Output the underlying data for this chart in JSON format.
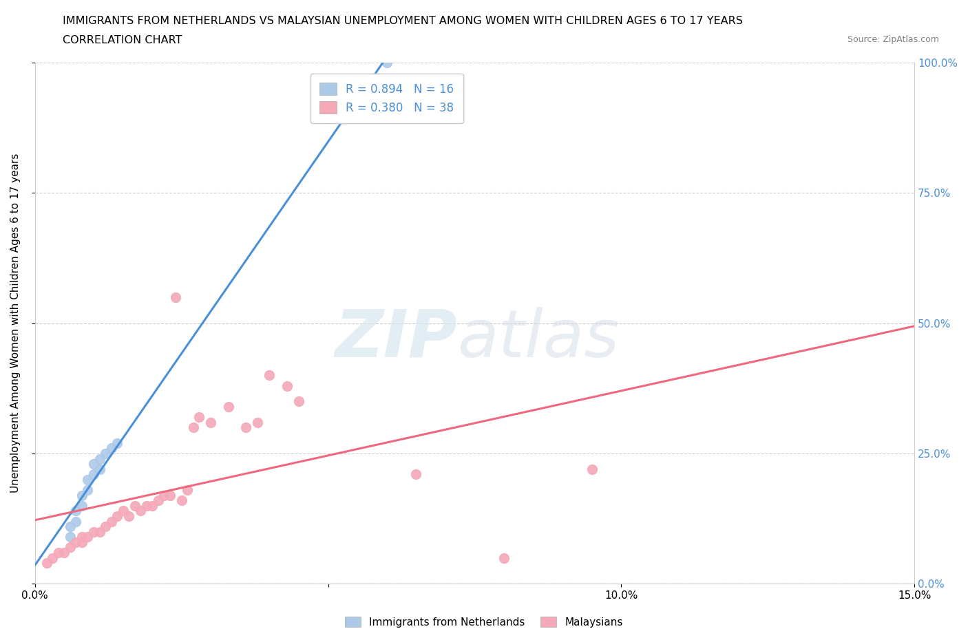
{
  "title": "IMMIGRANTS FROM NETHERLANDS VS MALAYSIAN UNEMPLOYMENT AMONG WOMEN WITH CHILDREN AGES 6 TO 17 YEARS",
  "subtitle": "CORRELATION CHART",
  "source": "Source: ZipAtlas.com",
  "ylabel": "Unemployment Among Women with Children Ages 6 to 17 years",
  "legend_labels": [
    "Immigrants from Netherlands",
    "Malaysians"
  ],
  "R_netherlands": 0.894,
  "N_netherlands": 16,
  "R_malaysians": 0.38,
  "N_malaysians": 38,
  "color_netherlands": "#adc9e8",
  "color_malaysians": "#f4a8b8",
  "trendline_netherlands": "#4a90d9",
  "trendline_malaysians": "#f06880",
  "right_axis_color": "#4a90d9",
  "background_color": "#ffffff",
  "xlim": [
    0.0,
    0.15
  ],
  "ylim": [
    0.0,
    1.0
  ],
  "yticks": [
    0.0,
    0.25,
    0.5,
    0.75,
    1.0
  ],
  "ytick_labels_right": [
    "0.0%",
    "25.0%",
    "50.0%",
    "75.0%",
    "100.0%"
  ],
  "xticks": [
    0.0,
    0.05,
    0.1,
    0.15
  ],
  "xtick_labels": [
    "0.0%",
    "",
    "10.0%",
    "15.0%"
  ],
  "netherlands_x": [
    0.006,
    0.006,
    0.007,
    0.007,
    0.008,
    0.008,
    0.009,
    0.009,
    0.01,
    0.01,
    0.011,
    0.011,
    0.012,
    0.013,
    0.014,
    0.06
  ],
  "netherlands_y": [
    0.09,
    0.11,
    0.12,
    0.14,
    0.15,
    0.17,
    0.18,
    0.2,
    0.21,
    0.23,
    0.22,
    0.24,
    0.25,
    0.26,
    0.27,
    1.0
  ],
  "malaysians_x": [
    0.002,
    0.003,
    0.004,
    0.005,
    0.006,
    0.007,
    0.008,
    0.008,
    0.009,
    0.01,
    0.011,
    0.012,
    0.013,
    0.014,
    0.015,
    0.016,
    0.017,
    0.018,
    0.019,
    0.02,
    0.021,
    0.022,
    0.023,
    0.024,
    0.025,
    0.026,
    0.027,
    0.028,
    0.03,
    0.033,
    0.036,
    0.038,
    0.04,
    0.043,
    0.045,
    0.065,
    0.08,
    0.095
  ],
  "malaysians_y": [
    0.04,
    0.05,
    0.06,
    0.06,
    0.07,
    0.08,
    0.08,
    0.09,
    0.09,
    0.1,
    0.1,
    0.11,
    0.12,
    0.13,
    0.14,
    0.13,
    0.15,
    0.14,
    0.15,
    0.15,
    0.16,
    0.17,
    0.17,
    0.55,
    0.16,
    0.18,
    0.3,
    0.32,
    0.31,
    0.34,
    0.3,
    0.31,
    0.4,
    0.38,
    0.35,
    0.21,
    0.05,
    0.22
  ],
  "grid_color": "#cccccc",
  "grid_linestyle": "--",
  "spine_color": "#cccccc"
}
